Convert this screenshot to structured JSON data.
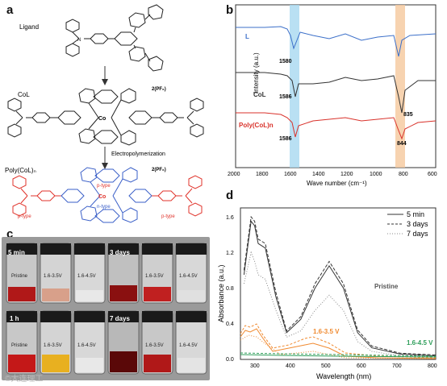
{
  "figure": {
    "panel_a": {
      "label": "a",
      "ligand_label": "Ligand",
      "col_label": "CoL",
      "col_salt": "2(PF₆)",
      "arrow_label": "Electropolymerization",
      "poly_label": "Poly(CoL)ₙ",
      "poly_salt": "2(PF₆)",
      "ptype_left": "p-type",
      "ptype_center": "p-type",
      "ntype_center": "n-type",
      "ptype_right": "p-type",
      "metal": "Co",
      "colors": {
        "ptype": "#e0332b",
        "ntype": "#3a5fc8"
      }
    },
    "panel_b": {
      "label": "b",
      "ylabel": "Intensity (a.u.)",
      "xlabel": "Wave number (cm⁻¹)",
      "xticks": [
        "2000",
        "1800",
        "1600",
        "1400",
        "1200",
        "1000",
        "800",
        "600"
      ],
      "series_labels": [
        "L",
        "CoL",
        "Poly(CoL)n"
      ],
      "annotations": [
        "1580",
        "1586",
        "1586",
        "835",
        "844"
      ],
      "colors": {
        "L": "#3b6fc9",
        "CoL": "#333333",
        "Poly": "#d9322b",
        "band1": "#a8d8f0",
        "band2": "#f5c89c"
      }
    },
    "panel_c": {
      "label": "c",
      "groups": [
        {
          "time": "5 min",
          "vials": [
            "Pristine",
            "1.6-3.5V",
            "1.6-4.5V"
          ]
        },
        {
          "time": "3 days",
          "vials": [
            "",
            "1.6-3.5V",
            "1.6-4.5V"
          ]
        },
        {
          "time": "1 h",
          "vials": [
            "Pristine",
            "1.6-3.5V",
            "1.6-4.5V"
          ]
        },
        {
          "time": "7 days",
          "vials": [
            "",
            "1.6-3.5V",
            "1.6-4.5V"
          ]
        }
      ]
    },
    "panel_d": {
      "label": "d",
      "ylabel": "Absorbance (a.u.)",
      "xlabel": "Wavelength (nm)",
      "xticks": [
        "300",
        "400",
        "500",
        "600",
        "700",
        "800"
      ],
      "yticks": [
        "0.0",
        "0.4",
        "0.8",
        "1.2",
        "1.6"
      ],
      "legend": [
        "5 min",
        "3 days",
        "7 days"
      ],
      "annotations": [
        "Pristine",
        "1.6-3.5 V",
        "1.6-4.5 V"
      ],
      "colors": {
        "pristine": "#333333",
        "mid": "#f08a30",
        "high": "#2e9e5a"
      }
    },
    "watermark": "©大连理工"
  },
  "chart_data": [
    {
      "type": "line",
      "title": "",
      "xlabel": "Wave number (cm⁻¹)",
      "ylabel": "Intensity (a.u.)",
      "xlim": [
        2000,
        600
      ],
      "series": [
        {
          "name": "L",
          "peaks": [
            1580
          ]
        },
        {
          "name": "CoL",
          "peaks": [
            1586,
            835
          ]
        },
        {
          "name": "Poly(CoL)n",
          "peaks": [
            1586,
            844
          ]
        }
      ]
    },
    {
      "type": "line",
      "title": "",
      "xlabel": "Wavelength (nm)",
      "ylabel": "Absorbance (a.u.)",
      "xlim": [
        250,
        800
      ],
      "ylim": [
        0,
        1.7
      ],
      "series": [
        {
          "name": "5 min",
          "x": [
            260,
            280,
            290,
            300,
            320,
            350,
            380,
            420,
            460,
            500,
            540,
            580,
            620,
            700,
            800
          ],
          "y": [
            0.95,
            1.55,
            1.5,
            1.3,
            1.25,
            0.7,
            0.3,
            0.45,
            0.8,
            1.05,
            0.8,
            0.3,
            0.13,
            0.06,
            0.04
          ]
        },
        {
          "name": "3 days",
          "x": [
            260,
            280,
            290,
            300,
            320,
            350,
            380,
            420,
            460,
            500,
            540,
            580,
            620,
            700,
            800
          ],
          "y": [
            1.0,
            1.6,
            1.55,
            1.35,
            1.3,
            0.75,
            0.32,
            0.48,
            0.85,
            1.1,
            0.85,
            0.33,
            0.15,
            0.07,
            0.05
          ]
        },
        {
          "name": "7 days",
          "x": [
            260,
            280,
            290,
            300,
            320,
            350,
            380,
            420,
            460,
            500,
            540,
            580,
            620,
            700,
            800
          ],
          "y": [
            0.85,
            1.2,
            1.1,
            0.95,
            0.9,
            0.55,
            0.25,
            0.32,
            0.55,
            0.72,
            0.55,
            0.2,
            0.09,
            0.04,
            0.03
          ]
        }
      ]
    }
  ]
}
